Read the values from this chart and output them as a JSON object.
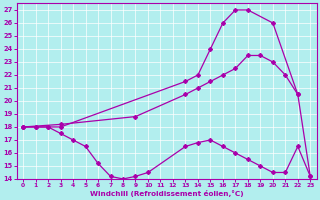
{
  "xlabel": "Windchill (Refroidissement éolien,°C)",
  "bg_color": "#b2eeee",
  "line_color": "#aa00aa",
  "xlim": [
    -0.5,
    23.5
  ],
  "ylim": [
    14,
    27.5
  ],
  "xticks": [
    0,
    1,
    2,
    3,
    4,
    5,
    6,
    7,
    8,
    9,
    10,
    11,
    12,
    13,
    14,
    15,
    16,
    17,
    18,
    19,
    20,
    21,
    22,
    23
  ],
  "yticks": [
    14,
    15,
    16,
    17,
    18,
    19,
    20,
    21,
    22,
    23,
    24,
    25,
    26,
    27
  ],
  "line1_x": [
    0,
    1,
    2,
    3,
    13,
    14,
    15,
    16,
    17,
    18,
    20,
    22
  ],
  "line1_y": [
    18,
    18,
    18,
    18,
    21.5,
    22,
    24,
    26,
    27,
    27,
    26,
    20.5
  ],
  "line2_x": [
    0,
    1,
    2,
    3,
    4,
    5,
    6,
    7,
    8,
    9,
    10,
    13,
    14,
    15,
    16,
    17,
    18,
    19,
    20,
    21,
    22,
    23
  ],
  "line2_y": [
    18,
    18,
    18,
    17.5,
    17,
    16.5,
    15.2,
    14.2,
    14.0,
    14.2,
    14.5,
    16.5,
    16.8,
    17.0,
    16.5,
    16.0,
    15.5,
    15.0,
    14.5,
    14.5,
    16.5,
    14.2
  ],
  "line3_x": [
    0,
    3,
    9,
    13,
    14,
    15,
    16,
    17,
    18,
    19,
    20,
    21,
    22,
    23
  ],
  "line3_y": [
    18,
    18.2,
    18.8,
    20.5,
    21.0,
    21.5,
    22.0,
    22.5,
    23.5,
    23.5,
    23.0,
    22.0,
    20.5,
    14.2
  ]
}
